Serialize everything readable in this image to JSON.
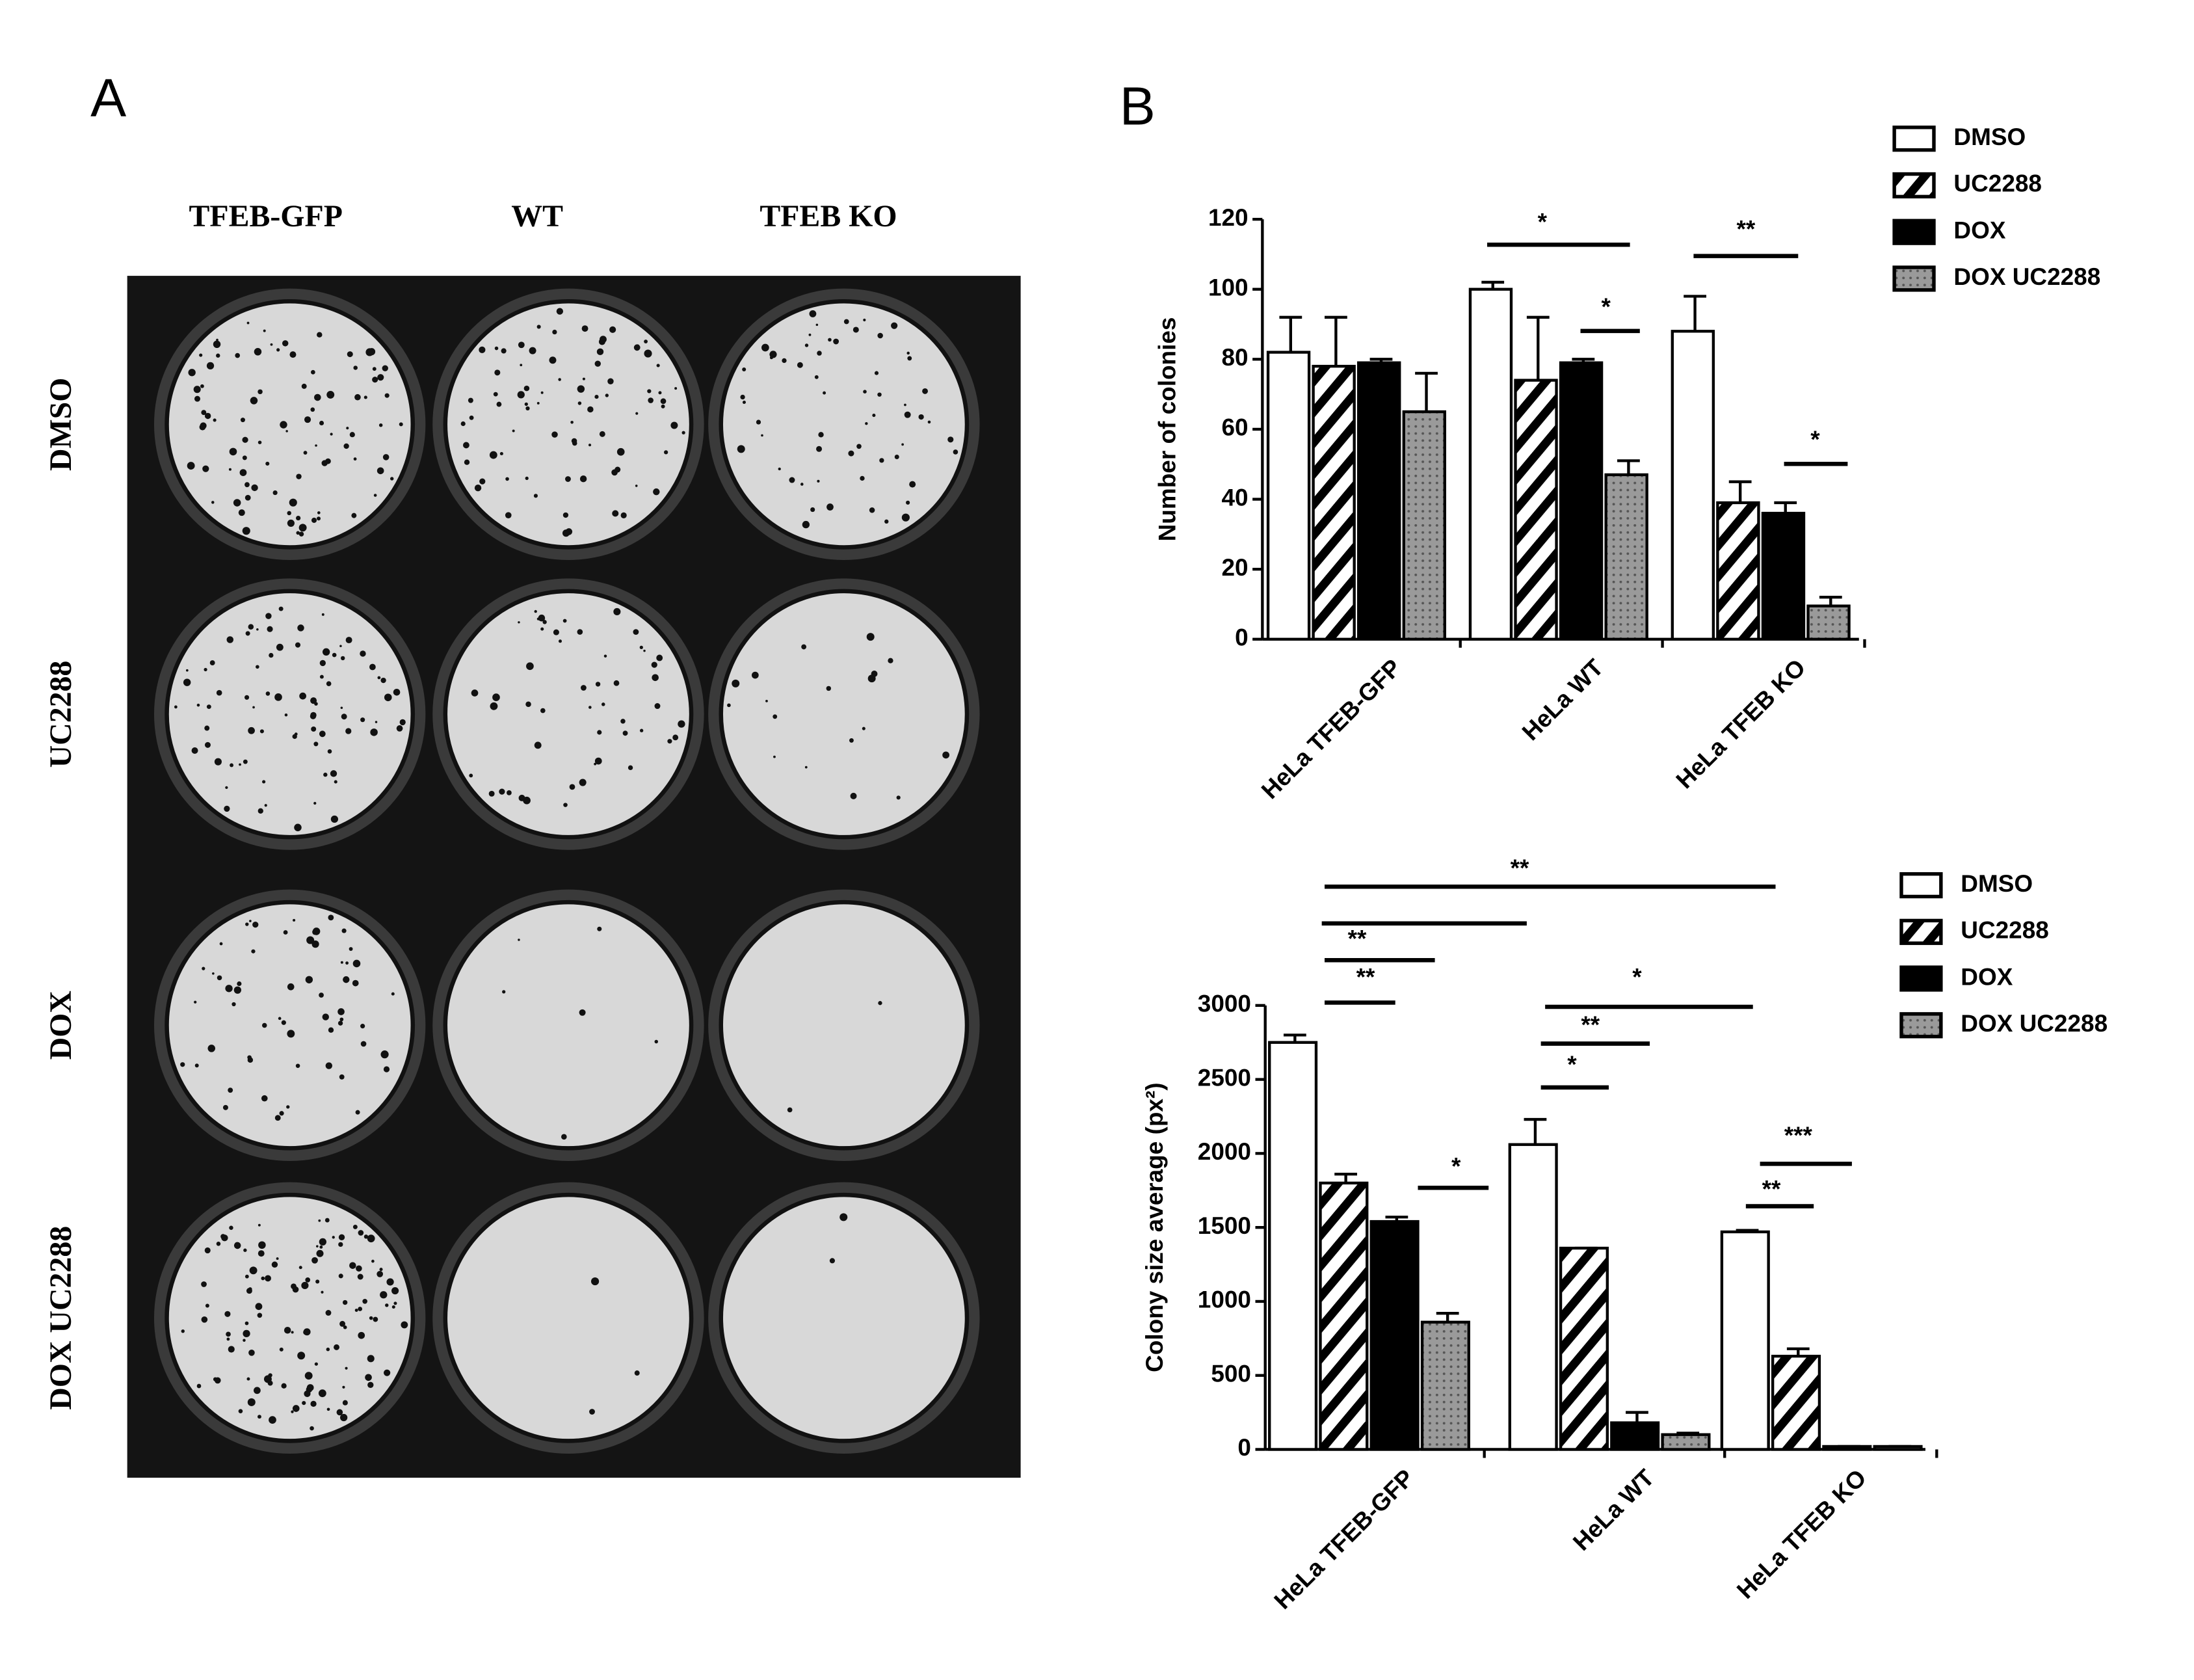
{
  "panels": {
    "label_a": "A",
    "label_b": "B",
    "columns": [
      "TFEB-GFP",
      "WT",
      "TFEB KO"
    ],
    "rows": [
      "DMSO",
      "UC2288",
      "DOX",
      "DOX UC2288"
    ]
  },
  "chart_data": [
    {
      "type": "bar",
      "y_label": "Number of colonies",
      "categories": [
        "HeLa TFEB-GFP",
        "HeLa WT",
        "HeLa TFEB KO"
      ],
      "series": [
        {
          "name": "DMSO",
          "color": "#ffffff",
          "pattern": "solid",
          "values": [
            82,
            100,
            88
          ],
          "errors": [
            10,
            2,
            10
          ]
        },
        {
          "name": "UC2288",
          "color": "#000000",
          "pattern": "hatch",
          "values": [
            78,
            74,
            39
          ],
          "errors": [
            14,
            18,
            6
          ]
        },
        {
          "name": "DOX",
          "color": "#000000",
          "pattern": "solid",
          "values": [
            79,
            79,
            36
          ],
          "errors": [
            1,
            1,
            3
          ]
        },
        {
          "name": "DOX UC2288",
          "color": "#999999",
          "pattern": "dots",
          "values": [
            65,
            47,
            9.5
          ],
          "errors": [
            11,
            4,
            2.5
          ]
        }
      ],
      "ylim": [
        0,
        120
      ],
      "yticks": [
        0,
        20,
        40,
        60,
        80,
        100,
        120
      ],
      "annotations": [
        "*",
        "*",
        "**",
        "*"
      ]
    },
    {
      "type": "bar",
      "y_label": "Colony size average (px²)",
      "categories": [
        "HeLa TFEB-GFP",
        "HeLa WT",
        "HeLa TFEB KO"
      ],
      "series": [
        {
          "name": "DMSO",
          "color": "#ffffff",
          "pattern": "solid",
          "values": [
            2750,
            2060,
            1470
          ],
          "errors": [
            50,
            170,
            10
          ]
        },
        {
          "name": "UC2288",
          "color": "#000000",
          "pattern": "hatch",
          "values": [
            1800,
            1360,
            630
          ],
          "errors": [
            60,
            0,
            50
          ]
        },
        {
          "name": "DOX",
          "color": "#000000",
          "pattern": "solid",
          "values": [
            1540,
            180,
            20
          ],
          "errors": [
            30,
            70,
            0
          ]
        },
        {
          "name": "DOX UC2288",
          "color": "#999999",
          "pattern": "dots",
          "values": [
            860,
            100,
            20
          ],
          "errors": [
            60,
            10,
            0
          ]
        }
      ],
      "ylim": [
        0,
        3000
      ],
      "yticks": [
        0,
        500,
        1000,
        1500,
        2000,
        2500,
        3000
      ],
      "annotations": [
        "**",
        "**",
        "**",
        "*",
        "*",
        "**",
        "*",
        "***",
        "**"
      ]
    }
  ]
}
